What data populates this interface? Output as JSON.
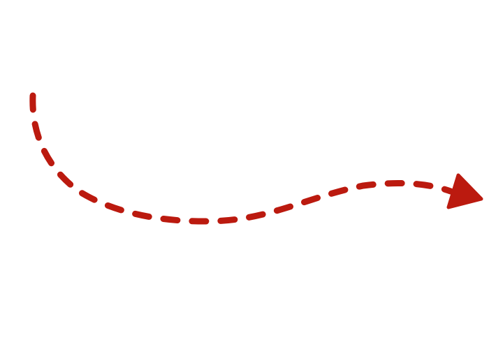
{
  "graphic": {
    "icon": "dashed-curved-arrow-icon",
    "direction": "right",
    "line_style": "dashed",
    "head_style": "filled-triangle"
  },
  "colors": {
    "background": "#ffffff",
    "arrow": "#bb1a0f"
  }
}
